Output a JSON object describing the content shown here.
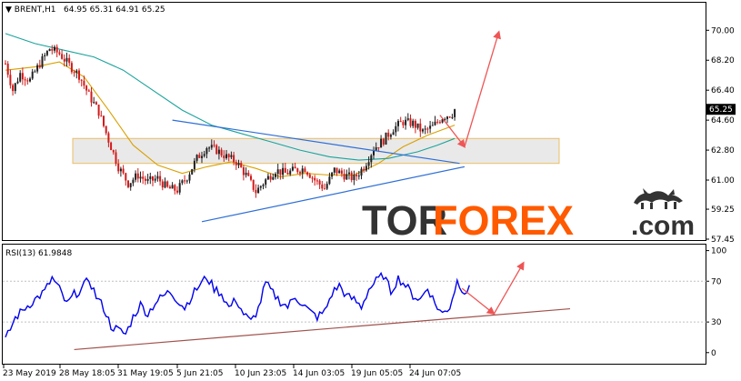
{
  "colors": {
    "candle_up": "#1f1f1f",
    "candle_down": "#d11a1a",
    "ma_fast": "#d9a000",
    "ma_slow": "#1aa39b",
    "trend_blue": "#2f6fd6",
    "forecast_arrow": "#ee5555",
    "rsi_line": "#0000ee",
    "rsi_trend": "#a0524d",
    "zone_fill": "#e6e6e6",
    "zone_border": "#e8b34a",
    "brand_dark": "#333333",
    "brand_accent": "#ff5a00"
  },
  "header": {
    "symbol_label": "▼ BRENT,H1",
    "ohlc": "64.95 65.31 64.91 65.25"
  },
  "rsi_header": {
    "label": "RSI(13) 61.9848"
  },
  "current_price": "65.25",
  "brand": {
    "part1": "TOR",
    "part2": "FOREX",
    "part3": ".com",
    "icon": "bull-bear-icon"
  },
  "chart_data": [
    {
      "type": "candlestick",
      "instrument": "BRENT",
      "timeframe": "H1",
      "ylim": [
        57.45,
        71.6
      ],
      "yticks": [
        "70.00",
        "68.20",
        "66.40",
        "64.60",
        "62.80",
        "61.00",
        "59.25",
        "57.45"
      ],
      "xticks": [
        "23 May 2019",
        "28 May 18:05",
        "31 May 19:05",
        "5 Jun 21:05",
        "10 Jun 23:05",
        "14 Jun 03:05",
        "19 Jun 05:05",
        "24 Jun 07:05"
      ],
      "close_path": [
        {
          "t": 0,
          "v": 68.0
        },
        {
          "t": 3,
          "v": 66.4
        },
        {
          "t": 6,
          "v": 67.4
        },
        {
          "t": 10,
          "v": 67.0
        },
        {
          "t": 14,
          "v": 68.0
        },
        {
          "t": 18,
          "v": 68.9
        },
        {
          "t": 22,
          "v": 68.6
        },
        {
          "t": 26,
          "v": 67.9
        },
        {
          "t": 30,
          "v": 67.3
        },
        {
          "t": 34,
          "v": 66.1
        },
        {
          "t": 38,
          "v": 65.1
        },
        {
          "t": 42,
          "v": 63.4
        },
        {
          "t": 46,
          "v": 61.8
        },
        {
          "t": 50,
          "v": 60.8
        },
        {
          "t": 54,
          "v": 61.3
        },
        {
          "t": 58,
          "v": 60.9
        },
        {
          "t": 62,
          "v": 61.1
        },
        {
          "t": 66,
          "v": 60.5
        },
        {
          "t": 70,
          "v": 60.4
        },
        {
          "t": 74,
          "v": 61.2
        },
        {
          "t": 78,
          "v": 62.3
        },
        {
          "t": 82,
          "v": 63.0
        },
        {
          "t": 86,
          "v": 62.8
        },
        {
          "t": 90,
          "v": 62.4
        },
        {
          "t": 94,
          "v": 62.1
        },
        {
          "t": 98,
          "v": 61.3
        },
        {
          "t": 102,
          "v": 60.3
        },
        {
          "t": 106,
          "v": 61.0
        },
        {
          "t": 110,
          "v": 61.6
        },
        {
          "t": 114,
          "v": 61.4
        },
        {
          "t": 118,
          "v": 61.6
        },
        {
          "t": 122,
          "v": 61.7
        },
        {
          "t": 126,
          "v": 61.0
        },
        {
          "t": 130,
          "v": 60.5
        },
        {
          "t": 134,
          "v": 61.6
        },
        {
          "t": 138,
          "v": 61.3
        },
        {
          "t": 142,
          "v": 61.1
        },
        {
          "t": 146,
          "v": 61.8
        },
        {
          "t": 150,
          "v": 62.9
        },
        {
          "t": 154,
          "v": 63.4
        },
        {
          "t": 158,
          "v": 64.1
        },
        {
          "t": 162,
          "v": 64.5
        },
        {
          "t": 166,
          "v": 64.4
        },
        {
          "t": 170,
          "v": 63.9
        },
        {
          "t": 174,
          "v": 64.2
        },
        {
          "t": 178,
          "v": 64.8
        },
        {
          "t": 182,
          "v": 65.0
        },
        {
          "t": 183,
          "v": 65.25
        }
      ],
      "ma_fast": [
        {
          "t": 0,
          "v": 67.6
        },
        {
          "t": 12,
          "v": 67.8
        },
        {
          "t": 22,
          "v": 68.1
        },
        {
          "t": 32,
          "v": 67.2
        },
        {
          "t": 42,
          "v": 65.2
        },
        {
          "t": 52,
          "v": 63.1
        },
        {
          "t": 62,
          "v": 61.9
        },
        {
          "t": 72,
          "v": 61.4
        },
        {
          "t": 82,
          "v": 61.8
        },
        {
          "t": 92,
          "v": 62.1
        },
        {
          "t": 102,
          "v": 61.7
        },
        {
          "t": 112,
          "v": 61.2
        },
        {
          "t": 122,
          "v": 61.4
        },
        {
          "t": 132,
          "v": 61.3
        },
        {
          "t": 142,
          "v": 61.3
        },
        {
          "t": 152,
          "v": 62.0
        },
        {
          "t": 162,
          "v": 63.0
        },
        {
          "t": 172,
          "v": 63.7
        },
        {
          "t": 183,
          "v": 64.3
        }
      ],
      "ma_slow": [
        {
          "t": 0,
          "v": 69.8
        },
        {
          "t": 12,
          "v": 69.2
        },
        {
          "t": 24,
          "v": 68.8
        },
        {
          "t": 36,
          "v": 68.4
        },
        {
          "t": 48,
          "v": 67.6
        },
        {
          "t": 60,
          "v": 66.4
        },
        {
          "t": 72,
          "v": 65.2
        },
        {
          "t": 84,
          "v": 64.3
        },
        {
          "t": 96,
          "v": 63.8
        },
        {
          "t": 108,
          "v": 63.3
        },
        {
          "t": 120,
          "v": 62.8
        },
        {
          "t": 132,
          "v": 62.4
        },
        {
          "t": 144,
          "v": 62.2
        },
        {
          "t": 156,
          "v": 62.3
        },
        {
          "t": 168,
          "v": 62.7
        },
        {
          "t": 176,
          "v": 63.1
        },
        {
          "t": 183,
          "v": 63.5
        }
      ],
      "support_zone": [
        62.0,
        63.5
      ],
      "trend_lines": [
        {
          "from": {
            "t": 68,
            "v": 64.6
          },
          "to": {
            "t": 185,
            "v": 62.0
          }
        },
        {
          "from": {
            "t": 80,
            "v": 58.5
          },
          "to": {
            "t": 187,
            "v": 61.8
          }
        }
      ],
      "forecast": [
        {
          "from": {
            "t": 177,
            "v": 64.9
          },
          "to": {
            "t": 187,
            "v": 63.0
          }
        },
        {
          "from": {
            "t": 187,
            "v": 63.0
          },
          "to": {
            "t": 201,
            "v": 69.9
          }
        }
      ]
    },
    {
      "type": "line",
      "name": "RSI(13)",
      "ylim": [
        -10,
        105
      ],
      "yticks": [
        100,
        70,
        30,
        0
      ],
      "last_value": 61.9848,
      "values": [
        {
          "t": 0,
          "v": 12
        },
        {
          "t": 4,
          "v": 34
        },
        {
          "t": 8,
          "v": 44
        },
        {
          "t": 12,
          "v": 52
        },
        {
          "t": 16,
          "v": 60
        },
        {
          "t": 19,
          "v": 73
        },
        {
          "t": 22,
          "v": 62
        },
        {
          "t": 25,
          "v": 47
        },
        {
          "t": 28,
          "v": 57
        },
        {
          "t": 31,
          "v": 62
        },
        {
          "t": 34,
          "v": 72
        },
        {
          "t": 37,
          "v": 55
        },
        {
          "t": 40,
          "v": 44
        },
        {
          "t": 43,
          "v": 26
        },
        {
          "t": 46,
          "v": 22
        },
        {
          "t": 49,
          "v": 18
        },
        {
          "t": 52,
          "v": 35
        },
        {
          "t": 55,
          "v": 47
        },
        {
          "t": 58,
          "v": 38
        },
        {
          "t": 61,
          "v": 49
        },
        {
          "t": 64,
          "v": 55
        },
        {
          "t": 67,
          "v": 60
        },
        {
          "t": 70,
          "v": 52
        },
        {
          "t": 73,
          "v": 44
        },
        {
          "t": 76,
          "v": 56
        },
        {
          "t": 79,
          "v": 66
        },
        {
          "t": 82,
          "v": 74
        },
        {
          "t": 85,
          "v": 63
        },
        {
          "t": 88,
          "v": 58
        },
        {
          "t": 91,
          "v": 44
        },
        {
          "t": 94,
          "v": 52
        },
        {
          "t": 97,
          "v": 38
        },
        {
          "t": 100,
          "v": 30
        },
        {
          "t": 103,
          "v": 43
        },
        {
          "t": 106,
          "v": 68
        },
        {
          "t": 109,
          "v": 58
        },
        {
          "t": 112,
          "v": 50
        },
        {
          "t": 115,
          "v": 45
        },
        {
          "t": 118,
          "v": 55
        },
        {
          "t": 121,
          "v": 48
        },
        {
          "t": 124,
          "v": 40
        },
        {
          "t": 127,
          "v": 35
        },
        {
          "t": 130,
          "v": 40
        },
        {
          "t": 133,
          "v": 58
        },
        {
          "t": 136,
          "v": 66
        },
        {
          "t": 139,
          "v": 55
        },
        {
          "t": 142,
          "v": 52
        },
        {
          "t": 145,
          "v": 45
        },
        {
          "t": 148,
          "v": 62
        },
        {
          "t": 151,
          "v": 70
        },
        {
          "t": 154,
          "v": 76
        },
        {
          "t": 157,
          "v": 60
        },
        {
          "t": 160,
          "v": 73
        },
        {
          "t": 163,
          "v": 66
        },
        {
          "t": 166,
          "v": 56
        },
        {
          "t": 169,
          "v": 52
        },
        {
          "t": 172,
          "v": 64
        },
        {
          "t": 175,
          "v": 48
        },
        {
          "t": 178,
          "v": 38
        },
        {
          "t": 181,
          "v": 45
        },
        {
          "t": 184,
          "v": 70
        },
        {
          "t": 187,
          "v": 60
        },
        {
          "t": 189,
          "v": 62
        }
      ],
      "trend_line": {
        "from": {
          "t": 28,
          "v": 3
        },
        "to": {
          "t": 230,
          "v": 43
        }
      },
      "forecast": [
        {
          "from": {
            "t": 186,
            "v": 63
          },
          "to": {
            "t": 199,
            "v": 38
          }
        },
        {
          "from": {
            "t": 199,
            "v": 38
          },
          "to": {
            "t": 211,
            "v": 88
          }
        }
      ]
    }
  ]
}
